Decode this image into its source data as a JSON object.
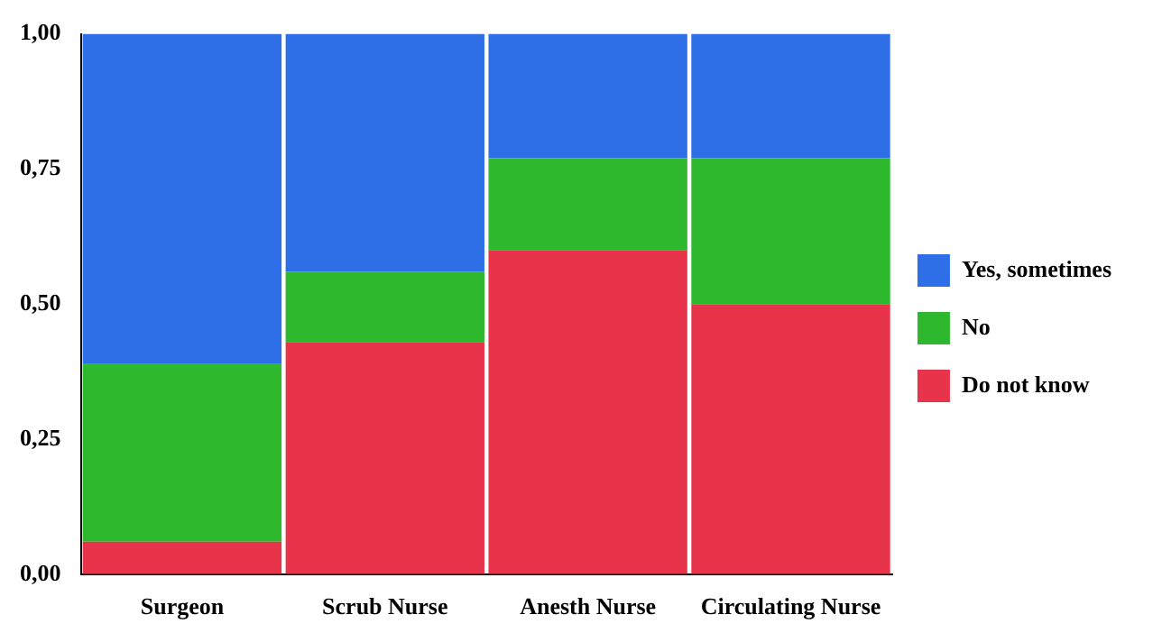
{
  "chart_data": {
    "type": "bar",
    "stacked": true,
    "categories": [
      "Surgeon",
      "Scrub Nurse",
      "Anesth Nurse",
      "Circulating Nurse"
    ],
    "series": [
      {
        "name": "Do not know",
        "color": "#e8344a",
        "values": [
          0.06,
          0.43,
          0.6,
          0.5
        ]
      },
      {
        "name": "No",
        "color": "#2db82d",
        "values": [
          0.33,
          0.13,
          0.17,
          0.27
        ]
      },
      {
        "name": "Yes, sometimes",
        "color": "#2e6fe8",
        "values": [
          0.61,
          0.44,
          0.23,
          0.23
        ]
      }
    ],
    "ylim": [
      0,
      1
    ],
    "yticks": [
      {
        "value": 0,
        "label": "0,00"
      },
      {
        "value": 0.25,
        "label": "0,25"
      },
      {
        "value": 0.5,
        "label": "0,50"
      },
      {
        "value": 0.75,
        "label": "0,75"
      },
      {
        "value": 1,
        "label": "1,00"
      }
    ],
    "grid": false,
    "legend": "right"
  }
}
